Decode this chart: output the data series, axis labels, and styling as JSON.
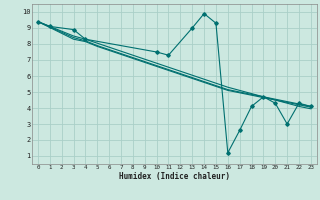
{
  "title": "",
  "xlabel": "Humidex (Indice chaleur)",
  "ylabel": "",
  "xlim": [
    -0.5,
    23.5
  ],
  "ylim": [
    0.5,
    10.5
  ],
  "xticks": [
    0,
    1,
    2,
    3,
    4,
    5,
    6,
    7,
    8,
    9,
    10,
    11,
    12,
    13,
    14,
    15,
    16,
    17,
    18,
    19,
    20,
    21,
    22,
    23
  ],
  "yticks": [
    1,
    2,
    3,
    4,
    5,
    6,
    7,
    8,
    9,
    10
  ],
  "bg_color": "#cce8e0",
  "grid_color": "#aacfc8",
  "line_color": "#007070",
  "lines": [
    {
      "x": [
        0,
        1,
        3,
        4,
        10,
        11,
        13,
        14,
        15,
        16,
        17,
        18,
        19,
        20,
        21,
        22,
        23
      ],
      "y": [
        9.4,
        9.1,
        8.9,
        8.3,
        7.5,
        7.3,
        9.0,
        9.9,
        9.3,
        1.2,
        2.6,
        4.1,
        4.7,
        4.3,
        3.0,
        4.3,
        4.1
      ],
      "marker": true
    },
    {
      "x": [
        0,
        3,
        4,
        5,
        6,
        7,
        8,
        9,
        10,
        11,
        12,
        13,
        14,
        15,
        16,
        17,
        18,
        19,
        20,
        21,
        22,
        23
      ],
      "y": [
        9.4,
        8.3,
        8.15,
        7.85,
        7.6,
        7.35,
        7.1,
        6.85,
        6.6,
        6.35,
        6.1,
        5.85,
        5.6,
        5.35,
        5.1,
        4.95,
        4.8,
        4.65,
        4.5,
        4.35,
        4.2,
        4.05
      ],
      "marker": false
    },
    {
      "x": [
        0,
        3,
        4,
        5,
        6,
        7,
        8,
        9,
        10,
        11,
        12,
        13,
        14,
        15,
        16,
        17,
        18,
        19,
        20,
        21,
        22,
        23
      ],
      "y": [
        9.4,
        8.5,
        8.3,
        8.05,
        7.8,
        7.55,
        7.3,
        7.05,
        6.8,
        6.55,
        6.3,
        6.05,
        5.8,
        5.55,
        5.3,
        5.1,
        4.9,
        4.7,
        4.5,
        4.3,
        4.1,
        3.95
      ],
      "marker": false
    },
    {
      "x": [
        0,
        3,
        4,
        5,
        6,
        7,
        8,
        9,
        10,
        11,
        12,
        13,
        14,
        15,
        16,
        17,
        18,
        19,
        20,
        21,
        22,
        23
      ],
      "y": [
        9.4,
        8.4,
        8.2,
        7.9,
        7.65,
        7.4,
        7.15,
        6.9,
        6.65,
        6.4,
        6.15,
        5.9,
        5.65,
        5.4,
        5.15,
        5.0,
        4.85,
        4.7,
        4.55,
        4.4,
        4.25,
        4.1
      ],
      "marker": false
    }
  ]
}
